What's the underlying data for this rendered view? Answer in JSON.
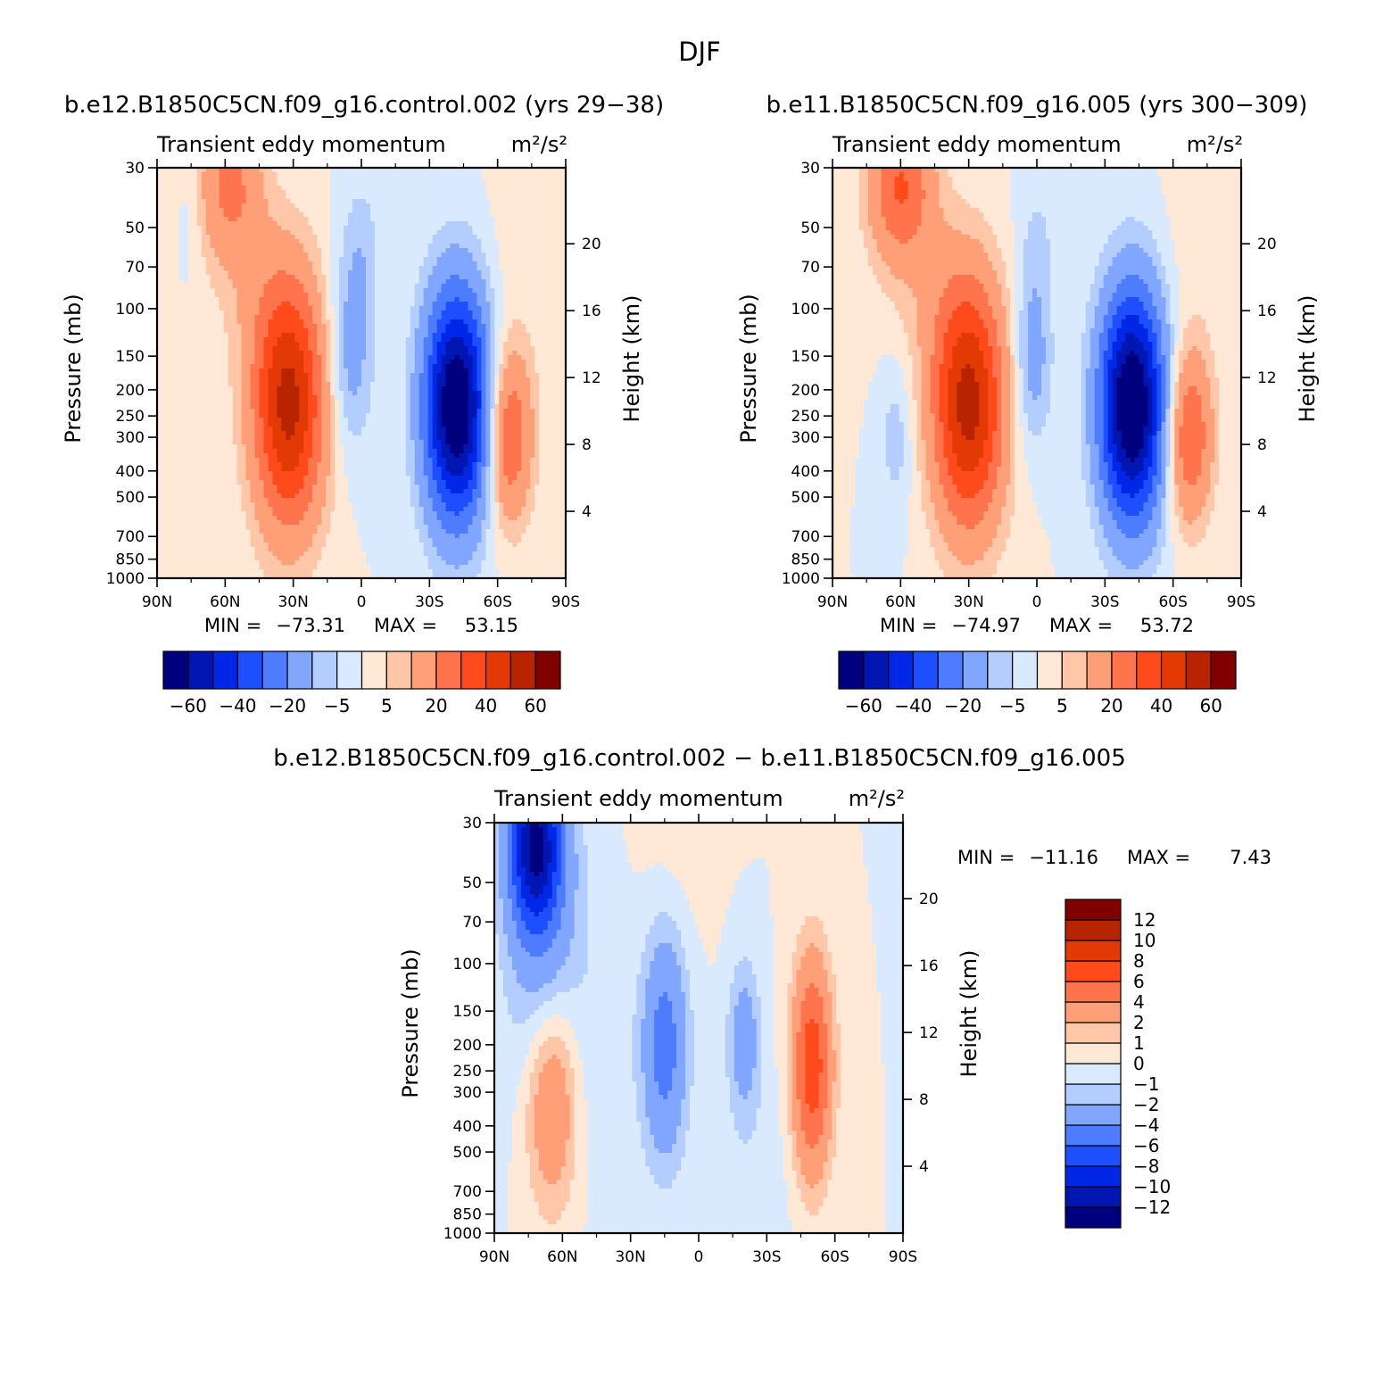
{
  "figure": {
    "title": "DJF"
  },
  "chart_data": [
    {
      "type": "heatmap",
      "title": "b.e12.B1850C5CN.f09_g16.control.002 (yrs 29-38)",
      "subtitle": "Transient eddy momentum",
      "units": "m²/s²",
      "ylabel": "Pressure (mb)",
      "y2label": "Height (km)",
      "x_ticks": [
        "90N",
        "60N",
        "30N",
        "0",
        "30S",
        "60S",
        "90S"
      ],
      "x_values": [
        90,
        60,
        30,
        0,
        -30,
        -60,
        -90
      ],
      "y_ticks": [
        30,
        50,
        70,
        100,
        150,
        200,
        250,
        300,
        400,
        500,
        700,
        850,
        1000
      ],
      "y2_ticks": [
        4,
        8,
        12,
        16,
        20
      ],
      "ylim": [
        1000,
        30
      ],
      "y_scale": "log",
      "stats": {
        "min_label": "MIN =",
        "min": "-73.31",
        "max_label": "MAX =",
        "max": "53.15"
      },
      "colorbar": {
        "orientation": "horizontal",
        "levels": [
          -60,
          -50,
          -40,
          -30,
          -20,
          -10,
          -5,
          0,
          5,
          10,
          20,
          30,
          40,
          50,
          60
        ],
        "labels": [
          "-60",
          "-40",
          "-20",
          "-5",
          "5",
          "20",
          "40",
          "60"
        ],
        "colors": [
          "#00007f",
          "#0016b3",
          "#0026e6",
          "#1e4fff",
          "#4d7cff",
          "#80a6ff",
          "#b3cdff",
          "#d9eaff",
          "#ffe8d6",
          "#ffc7a8",
          "#ff9f78",
          "#ff744c",
          "#ff4a1c",
          "#e33a05",
          "#b82400",
          "#800000"
        ]
      },
      "features": [
        {
          "lat": 32,
          "p": 230,
          "amp": 53,
          "slat": 11,
          "slogp": 0.32
        },
        {
          "lat": 58,
          "p": 35,
          "amp": 22,
          "slat": 10,
          "slogp": 0.2
        },
        {
          "lat": 45,
          "p": 90,
          "amp": 6,
          "slat": 14,
          "slogp": 0.25
        },
        {
          "lat": -42,
          "p": 230,
          "amp": -73,
          "slat": 10,
          "slogp": 0.3
        },
        {
          "lat": 5,
          "p": 150,
          "amp": -14,
          "slat": 7,
          "slogp": 0.25
        },
        {
          "lat": 0,
          "p": 60,
          "amp": -7,
          "slat": 6,
          "slogp": 0.2
        },
        {
          "lat": -65,
          "p": 300,
          "amp": 30,
          "slat": 7,
          "slogp": 0.22
        },
        {
          "lat": -70,
          "p": 60,
          "amp": 3,
          "slat": 10,
          "slogp": 0.5
        },
        {
          "lat": 75,
          "p": 40,
          "amp": -4,
          "slat": 4,
          "slogp": 0.2
        }
      ]
    },
    {
      "type": "heatmap",
      "title": "b.e11.B1850C5CN.f09_g16.005 (yrs 300-309)",
      "subtitle": "Transient eddy momentum",
      "units": "m²/s²",
      "ylabel": "Pressure (mb)",
      "y2label": "Height (km)",
      "x_ticks": [
        "90N",
        "60N",
        "30N",
        "0",
        "30S",
        "60S",
        "90S"
      ],
      "x_values": [
        90,
        60,
        30,
        0,
        -30,
        -60,
        -90
      ],
      "y_ticks": [
        30,
        50,
        70,
        100,
        150,
        200,
        250,
        300,
        400,
        500,
        700,
        850,
        1000
      ],
      "y2_ticks": [
        4,
        8,
        12,
        16,
        20
      ],
      "ylim": [
        1000,
        30
      ],
      "y_scale": "log",
      "stats": {
        "min_label": "MIN =",
        "min": "-74.97",
        "max_label": "MAX =",
        "max": "53.72"
      },
      "colorbar": {
        "orientation": "horizontal",
        "levels": [
          -60,
          -50,
          -40,
          -30,
          -20,
          -10,
          -5,
          0,
          5,
          10,
          20,
          30,
          40,
          50,
          60
        ],
        "labels": [
          "-60",
          "-40",
          "-20",
          "-5",
          "5",
          "20",
          "40",
          "60"
        ],
        "colors": [
          "#00007f",
          "#0016b3",
          "#0026e6",
          "#1e4fff",
          "#4d7cff",
          "#80a6ff",
          "#b3cdff",
          "#d9eaff",
          "#ffe8d6",
          "#ffc7a8",
          "#ff9f78",
          "#ff744c",
          "#ff4a1c",
          "#e33a05",
          "#b82400",
          "#800000"
        ]
      },
      "features": [
        {
          "lat": 30,
          "p": 230,
          "amp": 54,
          "slat": 11,
          "slogp": 0.32
        },
        {
          "lat": 60,
          "p": 35,
          "amp": 30,
          "slat": 10,
          "slogp": 0.2
        },
        {
          "lat": 45,
          "p": 90,
          "amp": 6,
          "slat": 14,
          "slogp": 0.25
        },
        {
          "lat": -42,
          "p": 230,
          "amp": -75,
          "slat": 10,
          "slogp": 0.3
        },
        {
          "lat": 2,
          "p": 160,
          "amp": -14,
          "slat": 6,
          "slogp": 0.22
        },
        {
          "lat": 0,
          "p": 60,
          "amp": -6,
          "slat": 6,
          "slogp": 0.2
        },
        {
          "lat": -67,
          "p": 300,
          "amp": 30,
          "slat": 7,
          "slogp": 0.22
        },
        {
          "lat": 62,
          "p": 300,
          "amp": -8,
          "slat": 5,
          "slogp": 0.2
        },
        {
          "lat": -70,
          "p": 60,
          "amp": 3,
          "slat": 10,
          "slogp": 0.5
        }
      ]
    },
    {
      "type": "heatmap",
      "title": "b.e12.B1850C5CN.f09_g16.control.002 - b.e11.B1850C5CN.f09_g16.005",
      "subtitle": "Transient eddy momentum",
      "units": "m²/s²",
      "ylabel": "Pressure (mb)",
      "y2label": "Height (km)",
      "x_ticks": [
        "90N",
        "60N",
        "30N",
        "0",
        "30S",
        "60S",
        "90S"
      ],
      "x_values": [
        90,
        60,
        30,
        0,
        -30,
        -60,
        -90
      ],
      "y_ticks": [
        30,
        50,
        70,
        100,
        150,
        200,
        250,
        300,
        400,
        500,
        700,
        850,
        1000
      ],
      "y2_ticks": [
        4,
        8,
        12,
        16,
        20
      ],
      "ylim": [
        1000,
        30
      ],
      "y_scale": "log",
      "stats": {
        "min_label": "MIN =",
        "min": "-11.16",
        "max_label": "MAX =",
        "max": "7.43"
      },
      "colorbar": {
        "orientation": "vertical",
        "levels": [
          -12,
          -10,
          -8,
          -6,
          -4,
          -2,
          -1,
          0,
          1,
          2,
          4,
          6,
          8,
          10,
          12
        ],
        "labels": [
          "-12",
          "-10",
          "-8",
          "-6",
          "-4",
          "-2",
          "-1",
          "0",
          "1",
          "2",
          "4",
          "6",
          "8",
          "10",
          "12"
        ],
        "colors": [
          "#00007f",
          "#0016b3",
          "#0026e6",
          "#1e4fff",
          "#4d7cff",
          "#80a6ff",
          "#b3cdff",
          "#d9eaff",
          "#ffe8d6",
          "#ffc7a8",
          "#ff9f78",
          "#ff744c",
          "#ff4a1c",
          "#e33a05",
          "#b82400",
          "#800000"
        ]
      },
      "features": [
        {
          "lat": 72,
          "p": 36,
          "amp": -11,
          "slat": 8,
          "slogp": 0.22
        },
        {
          "lat": 68,
          "p": 80,
          "amp": -3,
          "slat": 12,
          "slogp": 0.45
        },
        {
          "lat": 65,
          "p": 320,
          "amp": 4.5,
          "slat": 8,
          "slogp": 0.28
        },
        {
          "lat": 15,
          "p": 200,
          "amp": -5,
          "slat": 7,
          "slogp": 0.3
        },
        {
          "lat": -20,
          "p": 190,
          "amp": -3,
          "slat": 5,
          "slogp": 0.2
        },
        {
          "lat": -50,
          "p": 240,
          "amp": 7.4,
          "slat": 6,
          "slogp": 0.28
        },
        {
          "lat": 40,
          "p": 250,
          "amp": -0.8,
          "slat": 8,
          "slogp": 0.4
        },
        {
          "lat": -75,
          "p": 300,
          "amp": 0.6,
          "slat": 6,
          "slogp": 0.4
        },
        {
          "lat": -25,
          "p": 600,
          "amp": -0.6,
          "slat": 12,
          "slogp": 0.3
        },
        {
          "lat": 10,
          "p": 35,
          "amp": 0.5,
          "slat": 12,
          "slogp": 0.3
        },
        {
          "lat": -85,
          "p": 100,
          "amp": -0.5,
          "slat": 6,
          "slogp": 0.6
        }
      ]
    }
  ]
}
